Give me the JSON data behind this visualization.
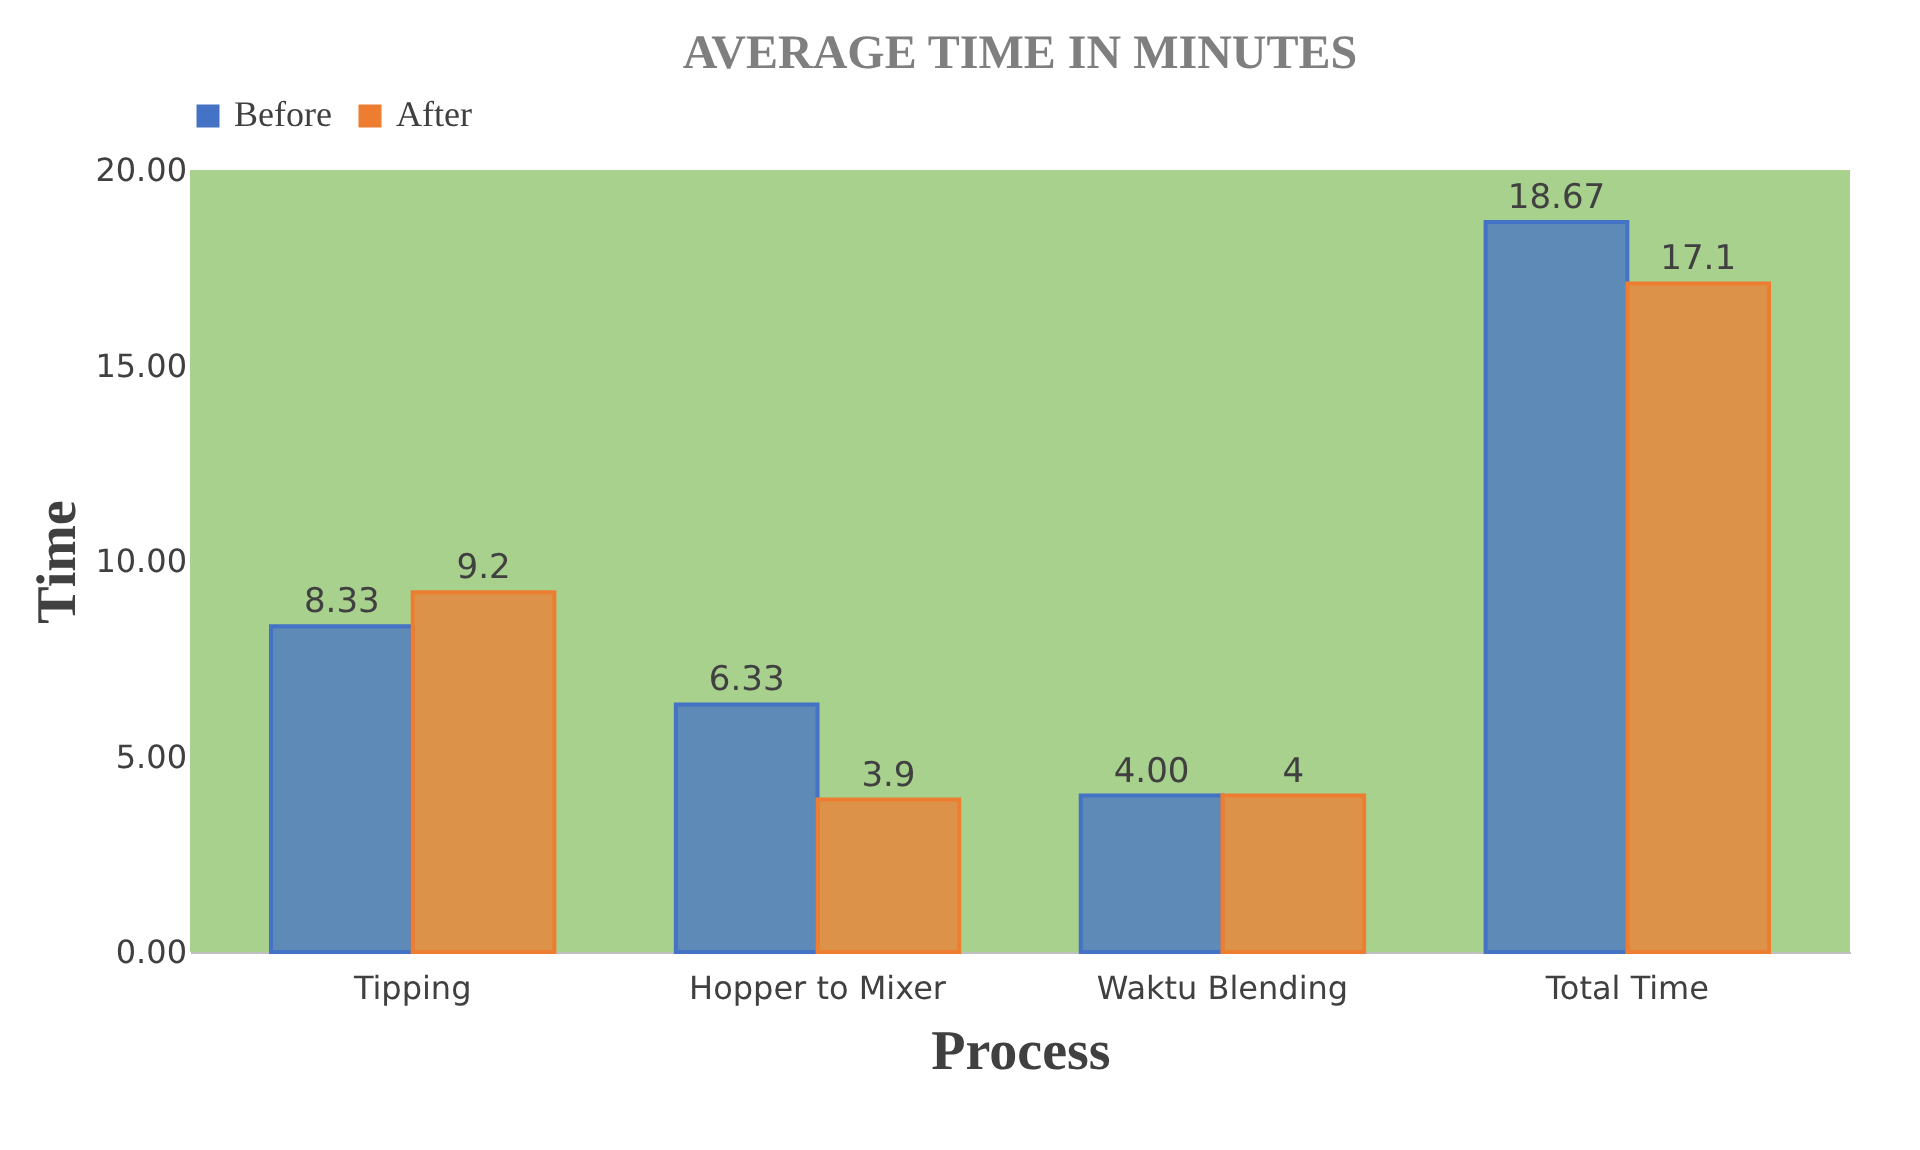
{
  "chart_data": {
    "type": "bar",
    "title": "AVERAGE TIME IN MINUTES",
    "xlabel": "Process",
    "ylabel": "Time",
    "categories": [
      "Tipping",
      "Hopper to Mixer",
      "Waktu Blending",
      "Total Time"
    ],
    "series": [
      {
        "name": "Before",
        "color": "#4472c4",
        "values": [
          8.33,
          6.33,
          4.0,
          18.67
        ],
        "value_labels": [
          "8.33",
          "6.33",
          "4.00",
          "18.67"
        ]
      },
      {
        "name": "After",
        "color": "#ed7d31",
        "values": [
          9.2,
          3.9,
          4,
          17.1
        ],
        "value_labels": [
          "9.2",
          "3.9",
          "4",
          "17.1"
        ]
      }
    ],
    "ylim": [
      0,
      20
    ],
    "yticks": [
      {
        "value": 0,
        "label": "0.00"
      },
      {
        "value": 5,
        "label": "5.00"
      },
      {
        "value": 10,
        "label": "10.00"
      },
      {
        "value": 15,
        "label": "15.00"
      },
      {
        "value": 20,
        "label": "20.00"
      }
    ],
    "grid": false,
    "legend": "top"
  }
}
